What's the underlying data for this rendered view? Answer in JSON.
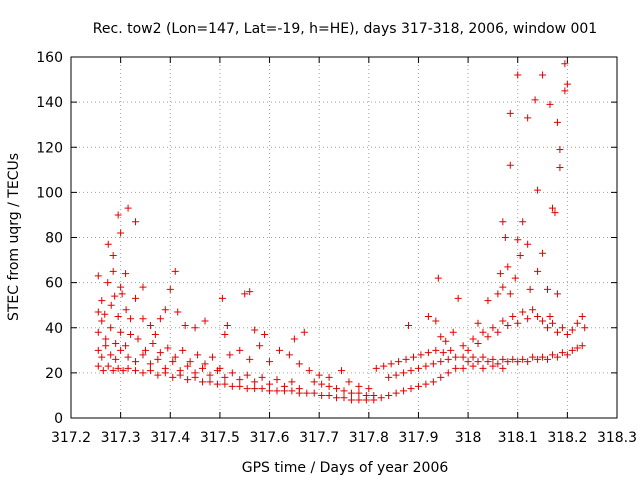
{
  "chart_data": {
    "type": "scatter",
    "title": "Rec. tow2 (Lon=147, Lat=-19, h=HE), days 317-318, 2006, window 001",
    "xlabel": "GPS time / Days of year 2006",
    "ylabel": "STEC from uqrg / TECUs",
    "xlim": [
      317.2,
      318.3
    ],
    "ylim": [
      0,
      160
    ],
    "x_ticks": [
      "317.2",
      "317.3",
      "317.4",
      "317.5",
      "317.6",
      "317.7",
      "317.8",
      "317.9",
      "318",
      "318.1",
      "318.2",
      "318.3"
    ],
    "y_ticks": [
      "0",
      "20",
      "40",
      "60",
      "80",
      "100",
      "120",
      "140",
      "160"
    ],
    "grid": true,
    "marker": "+",
    "color": "#e00000",
    "series": [
      {
        "name": "STEC",
        "points": [
          [
            317.255,
            63
          ],
          [
            317.275,
            77
          ],
          [
            317.285,
            72
          ],
          [
            317.295,
            90
          ],
          [
            317.3,
            82
          ],
          [
            317.315,
            93
          ],
          [
            317.33,
            87
          ],
          [
            317.285,
            65
          ],
          [
            317.3,
            58
          ],
          [
            317.31,
            64
          ],
          [
            317.345,
            58
          ],
          [
            317.41,
            65
          ],
          [
            317.4,
            57
          ],
          [
            317.255,
            47
          ],
          [
            317.262,
            52
          ],
          [
            317.268,
            46
          ],
          [
            317.274,
            60
          ],
          [
            317.281,
            50
          ],
          [
            317.288,
            54
          ],
          [
            317.295,
            45
          ],
          [
            317.303,
            55
          ],
          [
            317.311,
            48
          ],
          [
            317.32,
            44
          ],
          [
            317.33,
            53
          ],
          [
            317.345,
            44
          ],
          [
            317.36,
            41
          ],
          [
            317.37,
            37
          ],
          [
            317.38,
            44
          ],
          [
            317.39,
            48
          ],
          [
            317.415,
            47
          ],
          [
            317.43,
            41
          ],
          [
            317.45,
            40
          ],
          [
            317.47,
            43
          ],
          [
            317.505,
            53
          ],
          [
            317.51,
            37
          ],
          [
            317.515,
            41
          ],
          [
            317.55,
            55
          ],
          [
            317.56,
            56
          ],
          [
            317.57,
            39
          ],
          [
            317.59,
            37
          ],
          [
            317.65,
            35
          ],
          [
            317.67,
            38
          ],
          [
            317.255,
            38
          ],
          [
            317.262,
            43
          ],
          [
            317.27,
            35
          ],
          [
            317.28,
            40
          ],
          [
            317.29,
            33
          ],
          [
            317.3,
            38
          ],
          [
            317.31,
            32
          ],
          [
            317.32,
            37
          ],
          [
            317.335,
            35
          ],
          [
            317.35,
            30
          ],
          [
            317.365,
            33
          ],
          [
            317.38,
            29
          ],
          [
            317.395,
            31
          ],
          [
            317.41,
            27
          ],
          [
            317.425,
            30
          ],
          [
            317.44,
            25
          ],
          [
            317.455,
            28
          ],
          [
            317.47,
            24
          ],
          [
            317.485,
            27
          ],
          [
            317.5,
            22
          ],
          [
            317.52,
            28
          ],
          [
            317.54,
            30
          ],
          [
            317.56,
            26
          ],
          [
            317.58,
            32
          ],
          [
            317.6,
            25
          ],
          [
            317.62,
            30
          ],
          [
            317.64,
            28
          ],
          [
            317.66,
            24
          ],
          [
            317.68,
            21
          ],
          [
            317.255,
            30
          ],
          [
            317.262,
            27
          ],
          [
            317.27,
            32
          ],
          [
            317.28,
            28
          ],
          [
            317.29,
            26
          ],
          [
            317.3,
            30
          ],
          [
            317.315,
            27
          ],
          [
            317.33,
            25
          ],
          [
            317.345,
            28
          ],
          [
            317.36,
            24
          ],
          [
            317.375,
            26
          ],
          [
            317.39,
            22
          ],
          [
            317.405,
            25
          ],
          [
            317.42,
            21
          ],
          [
            317.435,
            23
          ],
          [
            317.45,
            20
          ],
          [
            317.465,
            22
          ],
          [
            317.48,
            19
          ],
          [
            317.495,
            21
          ],
          [
            317.51,
            18
          ],
          [
            317.525,
            20
          ],
          [
            317.54,
            17
          ],
          [
            317.555,
            19
          ],
          [
            317.57,
            16
          ],
          [
            317.585,
            18
          ],
          [
            317.6,
            15
          ],
          [
            317.615,
            17
          ],
          [
            317.63,
            14
          ],
          [
            317.645,
            16
          ],
          [
            317.66,
            13
          ],
          [
            317.255,
            23
          ],
          [
            317.265,
            21
          ],
          [
            317.275,
            23
          ],
          [
            317.285,
            21
          ],
          [
            317.295,
            22
          ],
          [
            317.305,
            21
          ],
          [
            317.315,
            22
          ],
          [
            317.33,
            21
          ],
          [
            317.345,
            20
          ],
          [
            317.36,
            21
          ],
          [
            317.375,
            19
          ],
          [
            317.39,
            20
          ],
          [
            317.405,
            18
          ],
          [
            317.42,
            19
          ],
          [
            317.435,
            17
          ],
          [
            317.45,
            18
          ],
          [
            317.465,
            16
          ],
          [
            317.48,
            16
          ],
          [
            317.495,
            15
          ],
          [
            317.51,
            15
          ],
          [
            317.525,
            14
          ],
          [
            317.54,
            14
          ],
          [
            317.555,
            13
          ],
          [
            317.57,
            13
          ],
          [
            317.585,
            13
          ],
          [
            317.6,
            12
          ],
          [
            317.615,
            12
          ],
          [
            317.63,
            12
          ],
          [
            317.645,
            12
          ],
          [
            317.66,
            11
          ],
          [
            317.675,
            11
          ],
          [
            317.69,
            11
          ],
          [
            317.705,
            10
          ],
          [
            317.72,
            10
          ],
          [
            317.735,
            9
          ],
          [
            317.75,
            9
          ],
          [
            317.765,
            8
          ],
          [
            317.78,
            8
          ],
          [
            317.795,
            8
          ],
          [
            317.81,
            8
          ],
          [
            317.825,
            9
          ],
          [
            317.84,
            10
          ],
          [
            317.855,
            11
          ],
          [
            317.87,
            12
          ],
          [
            317.885,
            13
          ],
          [
            317.9,
            14
          ],
          [
            317.915,
            15
          ],
          [
            317.93,
            16
          ],
          [
            317.945,
            18
          ],
          [
            317.96,
            20
          ],
          [
            317.975,
            22
          ],
          [
            317.69,
            16
          ],
          [
            317.705,
            15
          ],
          [
            317.72,
            14
          ],
          [
            317.735,
            13
          ],
          [
            317.75,
            12
          ],
          [
            317.765,
            11
          ],
          [
            317.78,
            11
          ],
          [
            317.795,
            10
          ],
          [
            317.81,
            10
          ],
          [
            317.7,
            19
          ],
          [
            317.72,
            18
          ],
          [
            317.745,
            21
          ],
          [
            317.76,
            16
          ],
          [
            317.78,
            14
          ],
          [
            317.8,
            13
          ],
          [
            317.815,
            22
          ],
          [
            317.83,
            23
          ],
          [
            317.845,
            24
          ],
          [
            317.86,
            25
          ],
          [
            317.875,
            26
          ],
          [
            317.89,
            27
          ],
          [
            317.905,
            28
          ],
          [
            317.92,
            29
          ],
          [
            317.935,
            30
          ],
          [
            317.95,
            29
          ],
          [
            317.965,
            30
          ],
          [
            317.84,
            18
          ],
          [
            317.855,
            19
          ],
          [
            317.87,
            20
          ],
          [
            317.885,
            21
          ],
          [
            317.9,
            22
          ],
          [
            317.915,
            23
          ],
          [
            317.93,
            24
          ],
          [
            317.945,
            25
          ],
          [
            317.96,
            26
          ],
          [
            317.975,
            27
          ],
          [
            317.88,
            41
          ],
          [
            317.92,
            45
          ],
          [
            317.935,
            43
          ],
          [
            317.945,
            36
          ],
          [
            317.955,
            34
          ],
          [
            317.97,
            38
          ],
          [
            317.94,
            62
          ],
          [
            317.98,
            53
          ],
          [
            317.99,
            32
          ],
          [
            318.0,
            30
          ],
          [
            318.01,
            35
          ],
          [
            318.02,
            33
          ],
          [
            318.03,
            38
          ],
          [
            318.04,
            36
          ],
          [
            318.05,
            40
          ],
          [
            318.06,
            38
          ],
          [
            318.07,
            43
          ],
          [
            318.08,
            41
          ],
          [
            318.09,
            45
          ],
          [
            318.1,
            42
          ],
          [
            318.11,
            47
          ],
          [
            318.12,
            44
          ],
          [
            318.13,
            48
          ],
          [
            318.14,
            45
          ],
          [
            318.15,
            43
          ],
          [
            318.16,
            40
          ],
          [
            318.17,
            42
          ],
          [
            318.18,
            38
          ],
          [
            318.19,
            40
          ],
          [
            318.2,
            37
          ],
          [
            318.21,
            39
          ],
          [
            318.22,
            42
          ],
          [
            318.23,
            45
          ],
          [
            318.235,
            40
          ],
          [
            317.99,
            27
          ],
          [
            318.0,
            25
          ],
          [
            318.01,
            27
          ],
          [
            318.02,
            25
          ],
          [
            318.03,
            27
          ],
          [
            318.04,
            25
          ],
          [
            318.05,
            26
          ],
          [
            318.06,
            24
          ],
          [
            318.07,
            26
          ],
          [
            318.08,
            25
          ],
          [
            318.09,
            26
          ],
          [
            318.1,
            25
          ],
          [
            318.11,
            26
          ],
          [
            318.12,
            25
          ],
          [
            318.13,
            27
          ],
          [
            318.14,
            26
          ],
          [
            318.15,
            27
          ],
          [
            318.16,
            26
          ],
          [
            318.17,
            28
          ],
          [
            318.18,
            27
          ],
          [
            318.19,
            29
          ],
          [
            318.2,
            28
          ],
          [
            318.21,
            30
          ],
          [
            318.22,
            31
          ],
          [
            318.23,
            32
          ],
          [
            317.99,
            22
          ],
          [
            318.01,
            23
          ],
          [
            318.03,
            22
          ],
          [
            318.05,
            23
          ],
          [
            318.07,
            22
          ],
          [
            318.02,
            42
          ],
          [
            318.04,
            52
          ],
          [
            318.06,
            55
          ],
          [
            318.065,
            64
          ],
          [
            318.07,
            58
          ],
          [
            318.075,
            80
          ],
          [
            318.08,
            67
          ],
          [
            318.085,
            55
          ],
          [
            318.095,
            62
          ],
          [
            318.1,
            79
          ],
          [
            318.105,
            72
          ],
          [
            318.11,
            87
          ],
          [
            318.12,
            77
          ],
          [
            318.125,
            57
          ],
          [
            318.14,
            65
          ],
          [
            318.15,
            73
          ],
          [
            318.16,
            57
          ],
          [
            318.165,
            45
          ],
          [
            318.17,
            93
          ],
          [
            318.175,
            91
          ],
          [
            318.18,
            55
          ],
          [
            318.07,
            87
          ],
          [
            318.085,
            112
          ],
          [
            318.085,
            135
          ],
          [
            318.1,
            152
          ],
          [
            318.12,
            133
          ],
          [
            318.135,
            141
          ],
          [
            318.14,
            101
          ],
          [
            318.15,
            152
          ],
          [
            318.165,
            139
          ],
          [
            318.18,
            131
          ],
          [
            318.185,
            119
          ],
          [
            318.185,
            111
          ],
          [
            318.195,
            145
          ],
          [
            318.195,
            157
          ],
          [
            318.2,
            148
          ]
        ]
      }
    ]
  }
}
